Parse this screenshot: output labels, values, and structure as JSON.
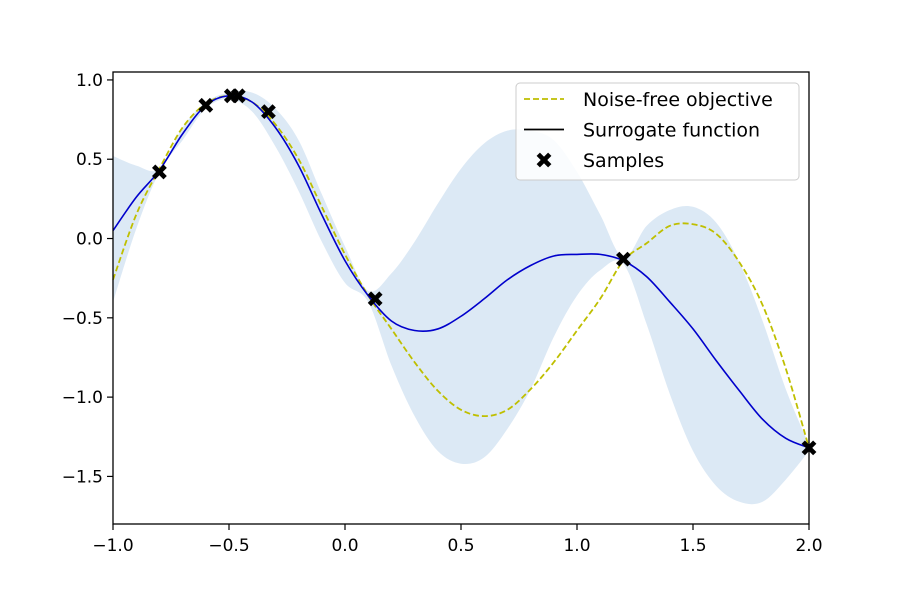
{
  "chart_data": {
    "type": "line",
    "title": "",
    "xlabel": "",
    "ylabel": "",
    "xlim": [
      -1.0,
      2.0
    ],
    "ylim": [
      -1.8,
      1.05
    ],
    "grid": false,
    "legend_position": "top-right",
    "x_ticks": [
      -1.0,
      -0.5,
      0.0,
      0.5,
      1.0,
      1.5,
      2.0
    ],
    "x_tick_labels": [
      "−1.0",
      "−0.5",
      "0.0",
      "0.5",
      "1.0",
      "1.5",
      "2.0"
    ],
    "y_ticks": [
      1.0,
      0.5,
      0.0,
      -0.5,
      -1.0,
      -1.5
    ],
    "y_tick_labels": [
      "1.0",
      "0.5",
      "0.0",
      "−0.5",
      "−1.0",
      "−1.5"
    ],
    "series": [
      {
        "name": "Noise-free objective",
        "style": "dashed",
        "color": "#bfbf00",
        "points": [
          [
            -1.0,
            -0.26
          ],
          [
            -0.9,
            0.15
          ],
          [
            -0.8,
            0.44
          ],
          [
            -0.7,
            0.7
          ],
          [
            -0.6,
            0.85
          ],
          [
            -0.5,
            0.9
          ],
          [
            -0.4,
            0.86
          ],
          [
            -0.3,
            0.72
          ],
          [
            -0.2,
            0.5
          ],
          [
            -0.1,
            0.2
          ],
          [
            0.0,
            -0.1
          ],
          [
            0.1,
            -0.36
          ],
          [
            0.2,
            -0.57
          ],
          [
            0.3,
            -0.78
          ],
          [
            0.4,
            -0.96
          ],
          [
            0.5,
            -1.08
          ],
          [
            0.6,
            -1.12
          ],
          [
            0.7,
            -1.08
          ],
          [
            0.8,
            -0.95
          ],
          [
            0.9,
            -0.78
          ],
          [
            1.0,
            -0.58
          ],
          [
            1.1,
            -0.38
          ],
          [
            1.2,
            -0.14
          ],
          [
            1.3,
            -0.03
          ],
          [
            1.4,
            0.08
          ],
          [
            1.5,
            0.09
          ],
          [
            1.6,
            0.03
          ],
          [
            1.7,
            -0.15
          ],
          [
            1.8,
            -0.42
          ],
          [
            1.9,
            -0.82
          ],
          [
            2.0,
            -1.32
          ]
        ]
      },
      {
        "name": "Surrogate function",
        "style": "solid",
        "color": "#0000cc",
        "points": [
          [
            -1.0,
            0.05
          ],
          [
            -0.9,
            0.26
          ],
          [
            -0.8,
            0.43
          ],
          [
            -0.7,
            0.66
          ],
          [
            -0.6,
            0.84
          ],
          [
            -0.5,
            0.9
          ],
          [
            -0.4,
            0.86
          ],
          [
            -0.3,
            0.7
          ],
          [
            -0.2,
            0.46
          ],
          [
            -0.1,
            0.15
          ],
          [
            0.0,
            -0.14
          ],
          [
            0.1,
            -0.36
          ],
          [
            0.2,
            -0.52
          ],
          [
            0.3,
            -0.58
          ],
          [
            0.4,
            -0.57
          ],
          [
            0.5,
            -0.49
          ],
          [
            0.6,
            -0.38
          ],
          [
            0.7,
            -0.26
          ],
          [
            0.8,
            -0.17
          ],
          [
            0.9,
            -0.11
          ],
          [
            1.0,
            -0.1
          ],
          [
            1.1,
            -0.1
          ],
          [
            1.2,
            -0.14
          ],
          [
            1.3,
            -0.24
          ],
          [
            1.4,
            -0.4
          ],
          [
            1.5,
            -0.57
          ],
          [
            1.6,
            -0.77
          ],
          [
            1.7,
            -0.96
          ],
          [
            1.8,
            -1.14
          ],
          [
            1.9,
            -1.26
          ],
          [
            2.0,
            -1.32
          ]
        ]
      }
    ],
    "confidence_band": {
      "color": "#dce9f5",
      "upper": [
        [
          -1.0,
          0.52
        ],
        [
          -0.9,
          0.46
        ],
        [
          -0.8,
          0.44
        ],
        [
          -0.7,
          0.7
        ],
        [
          -0.6,
          0.86
        ],
        [
          -0.5,
          0.92
        ],
        [
          -0.4,
          0.92
        ],
        [
          -0.3,
          0.82
        ],
        [
          -0.2,
          0.62
        ],
        [
          -0.1,
          0.28
        ],
        [
          0.0,
          -0.05
        ],
        [
          0.1,
          -0.33
        ],
        [
          0.2,
          -0.22
        ],
        [
          0.3,
          -0.02
        ],
        [
          0.4,
          0.22
        ],
        [
          0.5,
          0.44
        ],
        [
          0.6,
          0.6
        ],
        [
          0.7,
          0.68
        ],
        [
          0.8,
          0.68
        ],
        [
          0.9,
          0.62
        ],
        [
          1.0,
          0.42
        ],
        [
          1.1,
          0.15
        ],
        [
          1.2,
          -0.12
        ],
        [
          1.3,
          0.08
        ],
        [
          1.4,
          0.18
        ],
        [
          1.5,
          0.2
        ],
        [
          1.6,
          0.1
        ],
        [
          1.7,
          -0.15
        ],
        [
          1.8,
          -0.52
        ],
        [
          1.9,
          -0.95
        ],
        [
          2.0,
          -1.3
        ]
      ],
      "lower": [
        [
          -1.0,
          -0.4
        ],
        [
          -0.9,
          0.06
        ],
        [
          -0.8,
          0.42
        ],
        [
          -0.7,
          0.62
        ],
        [
          -0.6,
          0.82
        ],
        [
          -0.5,
          0.88
        ],
        [
          -0.4,
          0.8
        ],
        [
          -0.3,
          0.58
        ],
        [
          -0.2,
          0.3
        ],
        [
          -0.1,
          -0.02
        ],
        [
          0.0,
          -0.28
        ],
        [
          0.1,
          -0.4
        ],
        [
          0.2,
          -0.8
        ],
        [
          0.3,
          -1.12
        ],
        [
          0.4,
          -1.34
        ],
        [
          0.5,
          -1.42
        ],
        [
          0.6,
          -1.38
        ],
        [
          0.7,
          -1.2
        ],
        [
          0.8,
          -0.95
        ],
        [
          0.9,
          -0.62
        ],
        [
          1.0,
          -0.36
        ],
        [
          1.1,
          -0.2
        ],
        [
          1.2,
          -0.16
        ],
        [
          1.3,
          -0.54
        ],
        [
          1.4,
          -0.98
        ],
        [
          1.5,
          -1.34
        ],
        [
          1.6,
          -1.56
        ],
        [
          1.7,
          -1.66
        ],
        [
          1.8,
          -1.66
        ],
        [
          1.9,
          -1.52
        ],
        [
          2.0,
          -1.34
        ]
      ]
    },
    "samples": {
      "name": "Samples",
      "marker": "X",
      "color": "#000000",
      "points": [
        [
          -0.8,
          0.42
        ],
        [
          -0.6,
          0.84
        ],
        [
          -0.49,
          0.9
        ],
        [
          -0.46,
          0.9
        ],
        [
          -0.33,
          0.8
        ],
        [
          0.13,
          -0.38
        ],
        [
          1.2,
          -0.13
        ],
        [
          2.0,
          -1.32
        ]
      ]
    }
  }
}
